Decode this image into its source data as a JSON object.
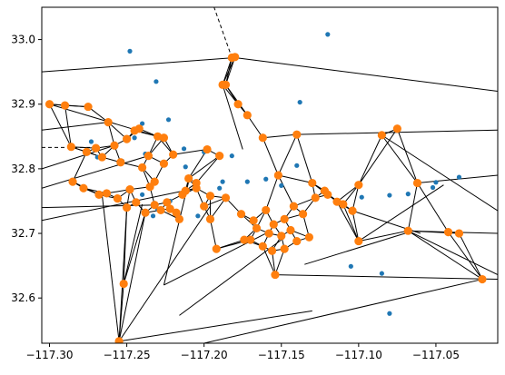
{
  "chart_data": {
    "type": "scatter",
    "title": "",
    "xlabel": "",
    "ylabel": "",
    "xlim": [
      -117.305,
      -117.01
    ],
    "ylim": [
      32.53,
      33.05
    ],
    "grid": false,
    "x_ticks": [
      -117.3,
      -117.25,
      -117.2,
      -117.15,
      -117.1,
      -117.05
    ],
    "x_tick_labels": [
      "−117.30",
      "−117.25",
      "−117.20",
      "−117.15",
      "−117.10",
      "−117.05"
    ],
    "y_ticks": [
      32.6,
      32.7,
      32.8,
      32.9,
      33.0
    ],
    "y_tick_labels": [
      "32.6",
      "32.7",
      "32.8",
      "32.9",
      "33.0"
    ],
    "colors": {
      "points": "#1f77b4",
      "vertices": "#ff7f0e",
      "edges": "#000000"
    },
    "series": [
      {
        "role": "input points",
        "marker": "dot",
        "x": [
          -117.248,
          -117.231,
          -117.24,
          -117.273,
          -117.245,
          -117.223,
          -117.269,
          -117.253,
          -117.238,
          -117.212,
          -117.204,
          -117.19,
          -117.188,
          -117.182,
          -117.172,
          -117.16,
          -117.15,
          -117.14,
          -117.138,
          -117.12,
          -117.098,
          -117.08,
          -117.068,
          -117.052,
          -117.035,
          -117.05,
          -117.213,
          -117.2,
          -117.233,
          -117.222,
          -117.105,
          -117.085,
          -117.08,
          -117.24,
          -117.23
        ],
        "y": [
          32.982,
          32.935,
          32.87,
          32.842,
          32.848,
          32.876,
          32.818,
          32.812,
          32.823,
          32.803,
          32.727,
          32.77,
          32.78,
          32.82,
          32.78,
          32.784,
          32.774,
          32.805,
          32.903,
          33.008,
          32.756,
          32.759,
          32.761,
          32.771,
          32.787,
          32.779,
          32.831,
          32.826,
          32.727,
          32.75,
          32.649,
          32.638,
          32.576,
          32.76,
          32.737
        ]
      },
      {
        "role": "voronoi vertices",
        "marker": "circle",
        "x": [
          -117.3,
          -117.29,
          -117.275,
          -117.27,
          -117.262,
          -117.258,
          -117.25,
          -117.245,
          -117.242,
          -117.236,
          -117.23,
          -117.226,
          -117.22,
          -117.21,
          -117.205,
          -117.198,
          -117.19,
          -117.186,
          -117.182,
          -117.178,
          -117.172,
          -117.162,
          -117.152,
          -117.14,
          -117.13,
          -117.122,
          -117.11,
          -117.1,
          -117.085,
          -117.075,
          -117.062,
          -117.042,
          -117.035,
          -117.02,
          -117.18,
          -117.188,
          -117.232,
          -117.235,
          -117.248,
          -117.263,
          -117.285,
          -117.278,
          -117.268,
          -117.256,
          -117.244,
          -117.232,
          -117.222,
          -117.214,
          -117.205,
          -117.196,
          -117.186,
          -117.176,
          -117.168,
          -117.16,
          -117.155,
          -117.148,
          -117.142,
          -117.136,
          -117.128,
          -117.12,
          -117.114,
          -117.166,
          -117.158,
          -117.15,
          -117.144,
          -117.17,
          -117.162,
          -117.156,
          -117.148,
          -117.14,
          -117.132,
          -117.25,
          -117.238,
          -117.228,
          -117.218,
          -117.286,
          -117.276,
          -117.266,
          -117.254,
          -117.24,
          -117.226,
          -117.212,
          -117.224,
          -117.216,
          -117.2,
          -117.196,
          -117.174,
          -117.154,
          -117.104,
          -117.068,
          -117.1,
          -117.192,
          -117.252,
          -117.255
        ],
        "y": [
          32.9,
          32.898,
          32.896,
          32.832,
          32.872,
          32.836,
          32.846,
          32.859,
          32.862,
          32.82,
          32.85,
          32.848,
          32.822,
          32.785,
          32.778,
          32.83,
          32.82,
          32.93,
          32.972,
          32.9,
          32.883,
          32.848,
          32.79,
          32.853,
          32.778,
          32.766,
          32.745,
          32.775,
          32.852,
          32.862,
          32.778,
          32.702,
          32.7,
          32.629,
          32.973,
          32.93,
          32.78,
          32.772,
          32.768,
          32.762,
          32.78,
          32.77,
          32.76,
          32.754,
          32.748,
          32.744,
          32.738,
          32.76,
          32.77,
          32.758,
          32.755,
          32.73,
          32.72,
          32.736,
          32.714,
          32.722,
          32.742,
          32.73,
          32.755,
          32.76,
          32.749,
          32.708,
          32.7,
          32.696,
          32.705,
          32.69,
          32.68,
          32.673,
          32.676,
          32.688,
          32.694,
          32.74,
          32.732,
          32.736,
          32.732,
          32.834,
          32.826,
          32.818,
          32.81,
          32.802,
          32.808,
          32.766,
          32.748,
          32.722,
          32.742,
          32.722,
          32.69,
          32.636,
          32.735,
          32.704,
          32.688,
          32.676,
          32.622,
          32.533
        ]
      }
    ]
  }
}
